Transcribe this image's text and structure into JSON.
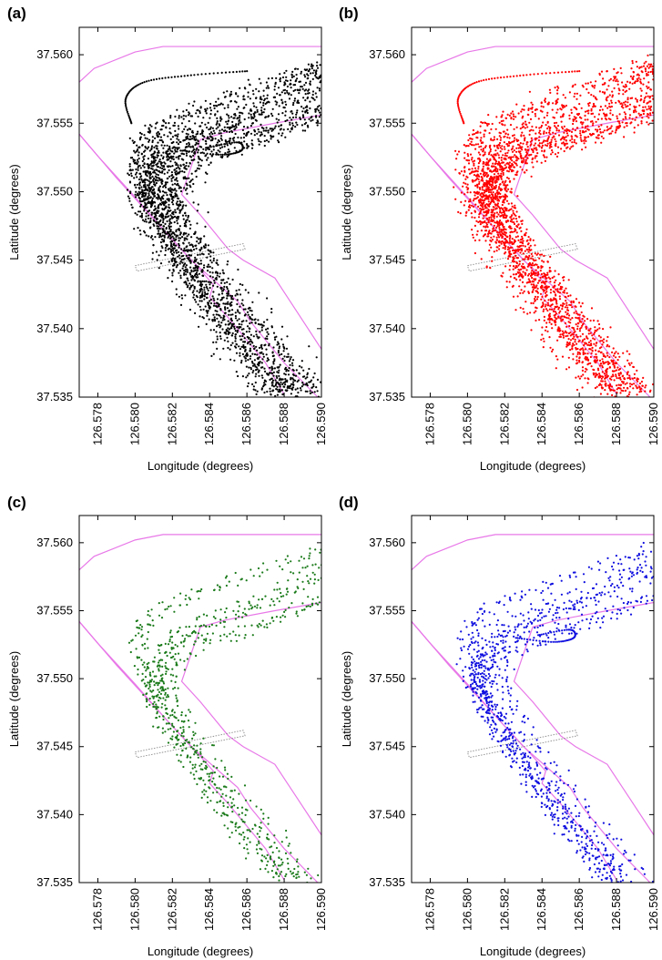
{
  "colors": {
    "boundary": "#e878e8",
    "bridge": "#8a8a8a",
    "axis": "#000000"
  },
  "xticks": [
    "126.578",
    "126.580",
    "126.582",
    "126.584",
    "126.586",
    "126.588",
    "126.590"
  ],
  "yticks": [
    "37.560",
    "37.555",
    "37.550",
    "37.545",
    "37.540",
    "37.535"
  ],
  "chart_data": [
    {
      "type": "scatter",
      "panel": "(a)",
      "color": "#000000",
      "density": "dense",
      "xlabel": "Longitude (degrees)",
      "ylabel": "Latitude (degrees)",
      "xlim": [
        126.577,
        126.59
      ],
      "ylim": [
        37.535,
        37.562
      ],
      "xticks": [
        126.578,
        126.58,
        126.582,
        126.584,
        126.586,
        126.588,
        126.59
      ],
      "yticks": [
        37.56,
        37.555,
        37.55,
        37.545,
        37.54,
        37.535
      ]
    },
    {
      "type": "scatter",
      "panel": "(b)",
      "color": "#ff0000",
      "density": "dense",
      "xlabel": "Longitude (degrees)",
      "ylabel": "Latitude (degrees)",
      "xlim": [
        126.577,
        126.59
      ],
      "ylim": [
        37.535,
        37.562
      ],
      "xticks": [
        126.578,
        126.58,
        126.582,
        126.584,
        126.586,
        126.588,
        126.59
      ],
      "yticks": [
        37.56,
        37.555,
        37.55,
        37.545,
        37.54,
        37.535
      ]
    },
    {
      "type": "scatter",
      "panel": "(c)",
      "color": "#1a7a1a",
      "density": "sparse",
      "xlabel": "Longitude (degrees)",
      "ylabel": "Latitude (degrees)",
      "xlim": [
        126.577,
        126.59
      ],
      "ylim": [
        37.535,
        37.562
      ],
      "xticks": [
        126.578,
        126.58,
        126.582,
        126.584,
        126.586,
        126.588,
        126.59
      ],
      "yticks": [
        37.56,
        37.555,
        37.55,
        37.545,
        37.54,
        37.535
      ]
    },
    {
      "type": "scatter",
      "panel": "(d)",
      "color": "#1010e0",
      "density": "medium",
      "xlabel": "Longitude (degrees)",
      "ylabel": "Latitude (degrees)",
      "xlim": [
        126.577,
        126.59
      ],
      "ylim": [
        37.535,
        37.562
      ],
      "xticks": [
        126.578,
        126.58,
        126.582,
        126.584,
        126.586,
        126.588,
        126.59
      ],
      "yticks": [
        37.56,
        37.555,
        37.55,
        37.545,
        37.54,
        37.535
      ]
    }
  ]
}
